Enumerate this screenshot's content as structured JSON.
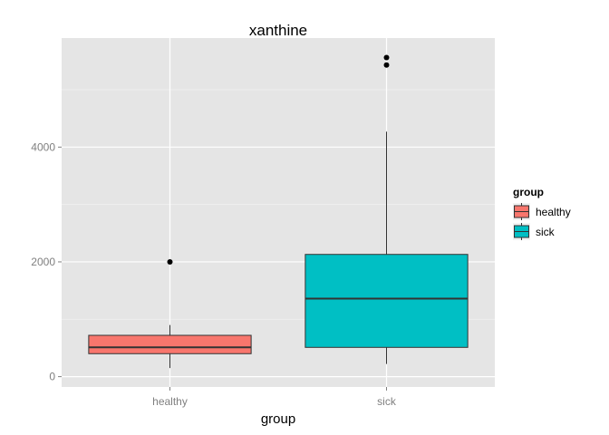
{
  "chart_data": {
    "type": "box",
    "title": "xanthine",
    "xlabel": "group",
    "ylabel": "",
    "categories": [
      "healthy",
      "sick"
    ],
    "ylim": [
      -180,
      5900
    ],
    "yticks": [
      0,
      2000,
      4000
    ],
    "y_tick_labels": [
      "0",
      "2000",
      "4000"
    ],
    "grid": true,
    "legend": {
      "title": "group",
      "position": "right",
      "entries": [
        "healthy",
        "sick"
      ]
    },
    "colors": {
      "healthy": "#F8766D",
      "sick": "#00BFC4",
      "panel": "#E5E5E5",
      "grid": "#FFFFFF"
    },
    "series": [
      {
        "category": "healthy",
        "whisker_low": 150,
        "q1": 400,
        "median": 510,
        "q3": 720,
        "whisker_high": 900,
        "outliers": [
          2000
        ]
      },
      {
        "category": "sick",
        "whisker_low": 220,
        "q1": 510,
        "median": 1360,
        "q3": 2130,
        "whisker_high": 4270,
        "outliers": [
          5430,
          5560
        ]
      }
    ]
  }
}
